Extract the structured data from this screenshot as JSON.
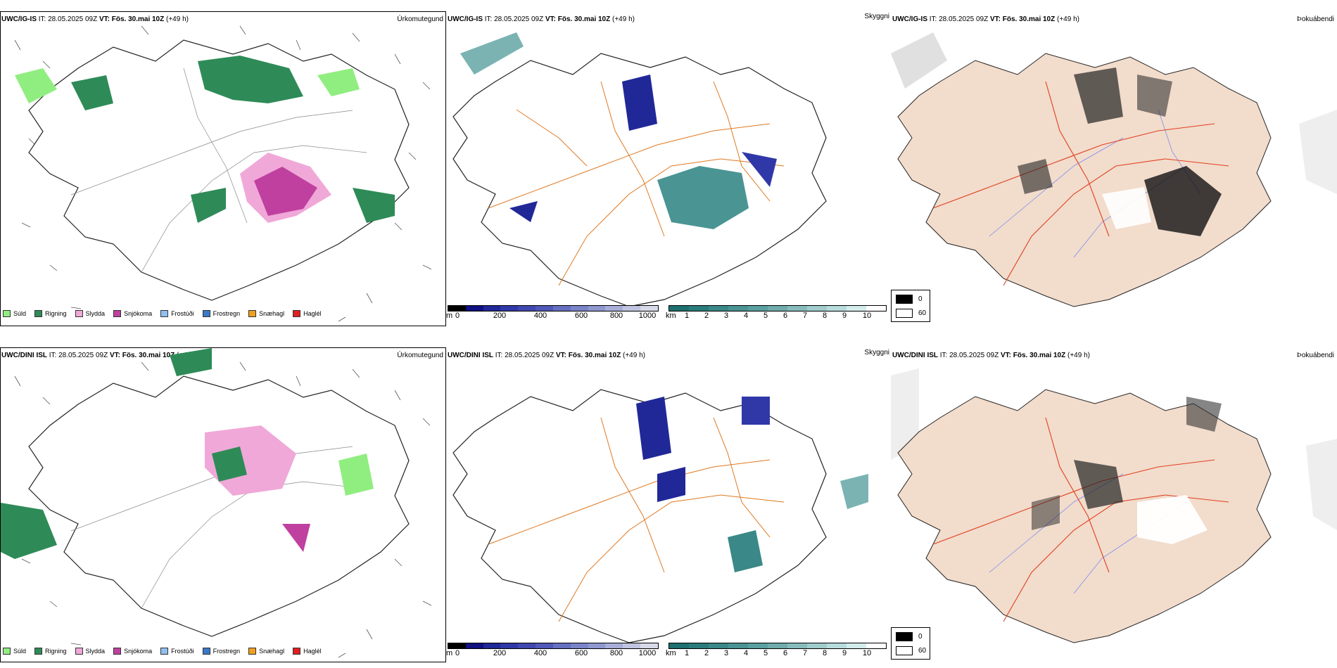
{
  "rows": [
    {
      "model": "UWC/IG-IS",
      "it_label": "IT:",
      "it_value": "28.05.2025 09Z",
      "vt_label": "VT:",
      "vt_value": "Fös. 30.mai 10Z",
      "lead": "(+49 h)"
    },
    {
      "model": "UWC/DINI ISL",
      "it_label": "IT:",
      "it_value": "28.05.2025 09Z",
      "vt_label": "VT:",
      "vt_value": "Fös. 30.mai 10Z",
      "lead": "(+49 h)"
    }
  ],
  "panel_titles": {
    "precip": "Úrkomutegund",
    "ceiling": "Skyggni",
    "fog": "Þokuábendi"
  },
  "precip_legend": [
    {
      "label": "Súld",
      "color": "#90ee80"
    },
    {
      "label": "Rigning",
      "color": "#2e8b57"
    },
    {
      "label": "Slydda",
      "color": "#f0a8d8"
    },
    {
      "label": "Snjókoma",
      "color": "#c040a0"
    },
    {
      "label": "Frostúði",
      "color": "#90c0f0"
    },
    {
      "label": "Frostregn",
      "color": "#3a78c8"
    },
    {
      "label": "Snæhagl",
      "color": "#f0a020"
    },
    {
      "label": "Haglél",
      "color": "#e02020"
    }
  ],
  "cloudbase_bar": {
    "unit": "m",
    "ticks": [
      "0",
      "200",
      "400",
      "600",
      "800",
      "1000"
    ],
    "colors": [
      "#000000",
      "#101080",
      "#202898",
      "#3038a8",
      "#4048b0",
      "#5058b8",
      "#6670c0",
      "#7a84c8",
      "#9098d0",
      "#a8aed8",
      "#c0c4e0",
      "#d8dae8"
    ]
  },
  "visibility_bar": {
    "unit": "km",
    "ticks": [
      "1",
      "2",
      "3",
      "4",
      "5",
      "6",
      "7",
      "8",
      "9",
      "10"
    ],
    "colors": [
      "#1e7070",
      "#2a7c7c",
      "#3a8888",
      "#4a9494",
      "#5aa0a0",
      "#70acac",
      "#88bcbc",
      "#a0cccc",
      "#b8dcdc",
      "#d4ecec",
      "#ffffff"
    ]
  },
  "fog_key": {
    "high": "0",
    "low": "60"
  }
}
